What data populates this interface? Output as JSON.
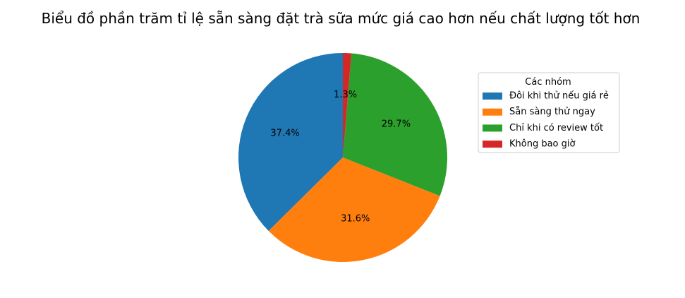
{
  "chart_data": {
    "type": "pie",
    "title": "Biểu đồ phần trăm tỉ lệ sẵn sàng đặt trà sữa mức giá cao hơn nếu chất lượng tốt hơn",
    "categories": [
      "Đôi khi thử nếu giá rẻ",
      "Sẵn sàng thử ngay",
      "Chỉ khi có review tốt",
      "Không bao giờ"
    ],
    "values": [
      37.4,
      31.6,
      29.7,
      1.3
    ],
    "value_labels": [
      "37.4%",
      "31.6%",
      "29.7%",
      "1.3%"
    ],
    "colors": [
      "#1f77b4",
      "#ff7f0e",
      "#2ca02c",
      "#d62728"
    ],
    "start_angle_deg": 90,
    "direction": "counterclockwise",
    "legend": {
      "title": "Các nhóm",
      "placement": "right"
    }
  }
}
